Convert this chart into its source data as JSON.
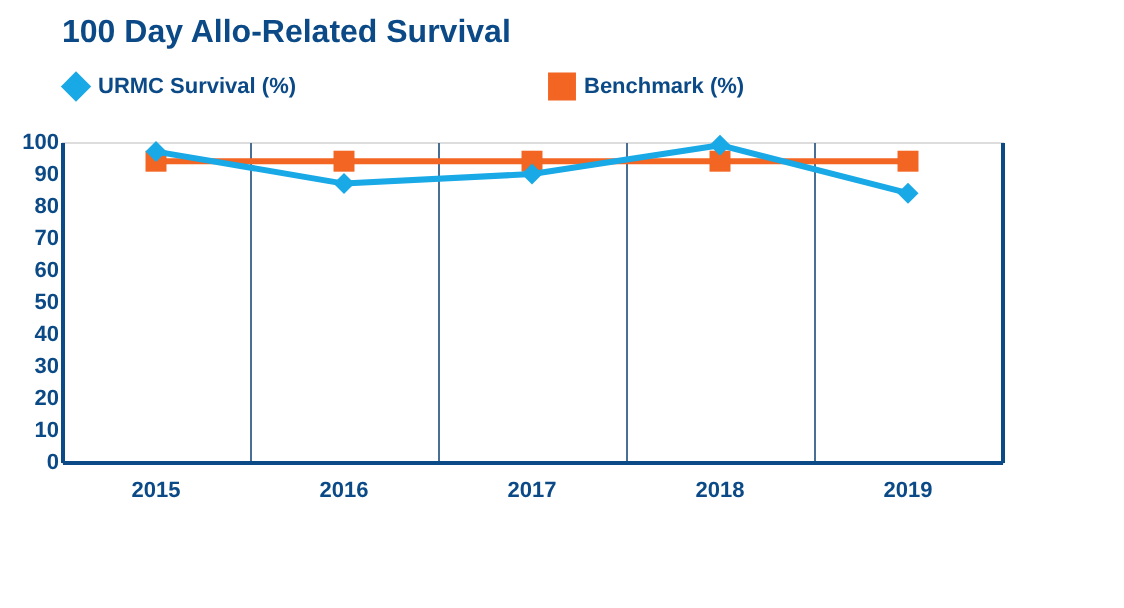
{
  "chart_data": {
    "type": "line",
    "title": "100 Day Allo-Related Survival",
    "categories": [
      "2015",
      "2016",
      "2017",
      "2018",
      "2019"
    ],
    "series": [
      {
        "name": "URMC Survival (%)",
        "color": "#18a9e6",
        "marker": "diamond",
        "values": [
          97,
          87,
          90,
          99,
          84
        ]
      },
      {
        "name": "Benchmark (%)",
        "color": "#f26522",
        "marker": "square",
        "values": [
          94,
          94,
          94,
          94,
          94
        ]
      }
    ],
    "ylim": [
      0,
      100
    ],
    "yticks": [
      0,
      10,
      20,
      30,
      40,
      50,
      60,
      70,
      80,
      90,
      100
    ],
    "grid": "x",
    "legend": "top",
    "line_style": "solid"
  }
}
